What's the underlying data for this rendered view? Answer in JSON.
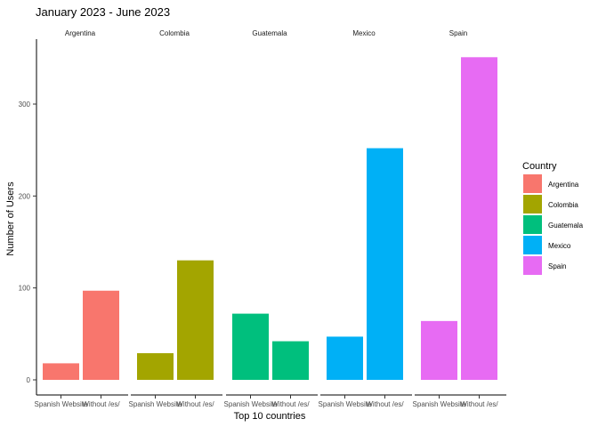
{
  "chart_data": {
    "type": "bar",
    "title": "January 2023 - June 2023",
    "xlabel": "Top 10 countries",
    "ylabel": "Number of Users",
    "ylim": [
      0,
      360
    ],
    "yticks": [
      0,
      100,
      200,
      300
    ],
    "categories": [
      "Spanish Website",
      "Without /es/"
    ],
    "category_labels": [
      "Spanish Website",
      "Without /es/"
    ],
    "facets": [
      {
        "name": "Argentina",
        "color": "#F8766D",
        "values": [
          18,
          97
        ]
      },
      {
        "name": "Colombia",
        "color": "#A3A500",
        "values": [
          29,
          130
        ]
      },
      {
        "name": "Guatemala",
        "color": "#00BF7D",
        "values": [
          72,
          42
        ]
      },
      {
        "name": "Mexico",
        "color": "#00B0F6",
        "values": [
          47,
          252
        ]
      },
      {
        "name": "Spain",
        "color": "#E76BF3",
        "values": [
          64,
          351
        ]
      }
    ],
    "legend": {
      "title": "Country",
      "position": "right"
    },
    "grid": false
  }
}
